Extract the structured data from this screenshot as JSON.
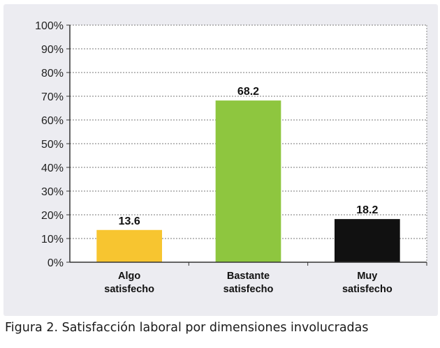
{
  "caption": "Figura 2. Satisfacción laboral por dimensiones involucradas",
  "chart_data": {
    "type": "bar",
    "title": "",
    "xlabel": "",
    "ylabel": "",
    "categories": [
      [
        "Algo",
        "satisfecho"
      ],
      [
        "Bastante",
        "satisfecho"
      ],
      [
        "Muy",
        "satisfecho"
      ]
    ],
    "values": [
      13.6,
      68.2,
      18.2
    ],
    "data_labels": [
      "13.6",
      "68.2",
      "18.2"
    ],
    "bar_colors": [
      "#f7c530",
      "#8ec63f",
      "#111111"
    ],
    "ylim": [
      0,
      100
    ],
    "yticks": [
      0,
      10,
      20,
      30,
      40,
      50,
      60,
      70,
      80,
      90,
      100
    ],
    "ytick_labels": [
      "0%",
      "10%",
      "20%",
      "30%",
      "40%",
      "50%",
      "60%",
      "70%",
      "80%",
      "90%",
      "100%"
    ],
    "grid": true,
    "legend": "none"
  }
}
